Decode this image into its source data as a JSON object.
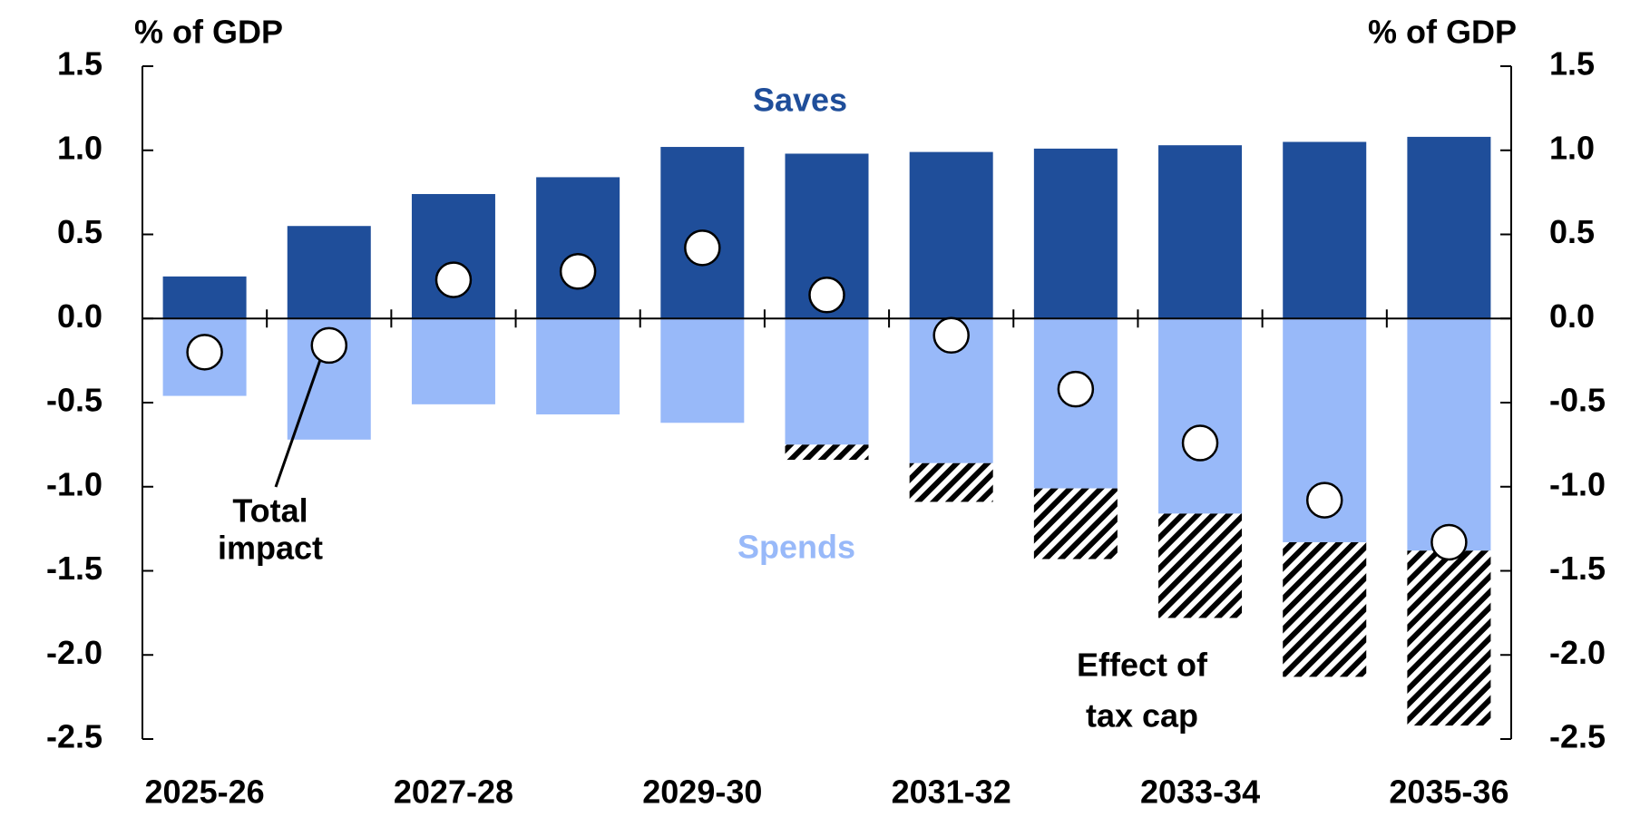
{
  "chart_data": {
    "type": "bar",
    "y_label": "% of GDP",
    "y2_label": "% of GDP",
    "categories": [
      "2025-26",
      null,
      "2027-28",
      null,
      "2029-30",
      null,
      "2031-32",
      null,
      "2033-34",
      null,
      "2035-36"
    ],
    "series": [
      {
        "name": "Saves",
        "color": "#1f4e9a",
        "values": [
          0.25,
          0.55,
          0.74,
          0.84,
          1.02,
          0.98,
          0.99,
          1.01,
          1.03,
          1.05,
          1.08
        ]
      },
      {
        "name": "Spends",
        "color": "#98b9f9",
        "values": [
          -0.46,
          -0.72,
          -0.51,
          -0.57,
          -0.62,
          -0.75,
          -0.86,
          -1.01,
          -1.16,
          -1.33,
          -1.38
        ]
      },
      {
        "label": [
          "Effect of",
          "tax cap"
        ],
        "color": "#000000",
        "values": [
          null,
          null,
          null,
          null,
          null,
          -0.09,
          -0.23,
          -0.42,
          -0.62,
          -0.8,
          -1.04
        ]
      },
      {
        "label": [
          "Total",
          "impact"
        ],
        "color": "#ffffff",
        "values": [
          -0.2,
          -0.16,
          0.23,
          0.28,
          0.42,
          0.14,
          -0.1,
          -0.42,
          -0.74,
          -1.08,
          -1.33
        ]
      }
    ],
    "ylim": [
      -2.5,
      1.5
    ],
    "yticks": [
      {
        "value": 1.5,
        "label": "1.5"
      },
      {
        "value": 1,
        "label": "1.0"
      },
      {
        "value": 0.5,
        "label": "0.5"
      },
      {
        "value": 0,
        "label": "0.0"
      },
      {
        "value": -0.5,
        "label": "-0.5"
      },
      {
        "value": -1,
        "label": "-1.0"
      },
      {
        "value": -1.5,
        "label": "-1.5"
      },
      {
        "value": -2,
        "label": "-2.0"
      },
      {
        "value": -2.5,
        "label": "-2.5"
      }
    ],
    "y2lim": [
      -2.5,
      1.5
    ],
    "y2ticks": [
      {
        "value": 1.5,
        "label": "1.5"
      },
      {
        "value": 1,
        "label": "1.0"
      },
      {
        "value": 0.5,
        "label": "0.5"
      },
      {
        "value": 0,
        "label": "0.0"
      },
      {
        "value": -0.5,
        "label": "-0.5"
      },
      {
        "value": -1,
        "label": "-1.0"
      },
      {
        "value": -1.5,
        "label": "-1.5"
      },
      {
        "value": -2,
        "label": "-2.0"
      },
      {
        "value": -2.5,
        "label": "-2.5"
      }
    ]
  }
}
